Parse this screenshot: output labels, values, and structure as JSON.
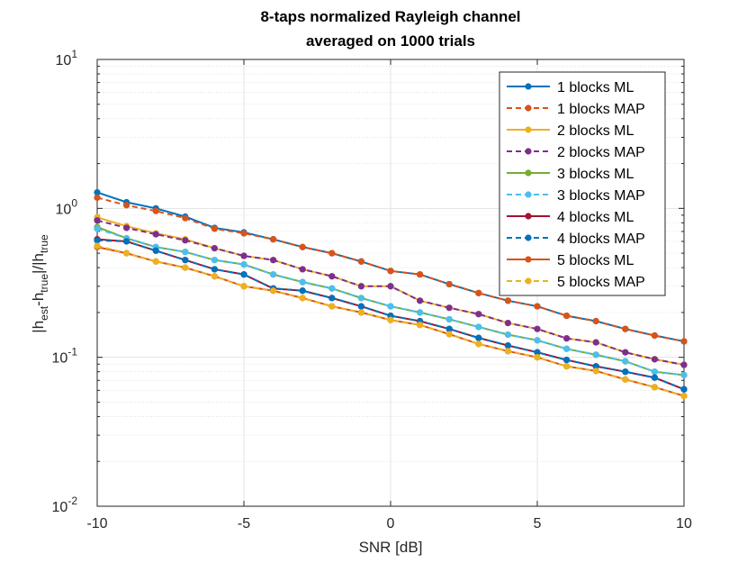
{
  "chart_data": {
    "type": "line",
    "title": [
      "8-taps normalized Rayleigh channel",
      "averaged on 1000 trials"
    ],
    "xlabel": "SNR [dB]",
    "ylabel": {
      "base": "|h",
      "sub1": "est",
      "mid": "-h",
      "sub2": "true",
      "mid2": "|/|h",
      "sub3": "true"
    },
    "xlim": [
      -10,
      10
    ],
    "ylim": [
      0.01,
      10
    ],
    "yscale": "log",
    "grid": true,
    "minor_grid": true,
    "legend_position": "top-right",
    "xticks": [
      -10,
      -5,
      0,
      5,
      10
    ],
    "xtick_labels": [
      "-10",
      "-5",
      "0",
      "5",
      "10"
    ],
    "yticks": [
      {
        "value": 0.01,
        "base": "10",
        "exp": "-2"
      },
      {
        "value": 0.1,
        "base": "10",
        "exp": "-1"
      },
      {
        "value": 1,
        "base": "10",
        "exp": "0"
      },
      {
        "value": 10,
        "base": "10",
        "exp": "1"
      }
    ],
    "x": [
      -10,
      -9,
      -8,
      -7,
      -6,
      -5,
      -4,
      -3,
      -2,
      -1,
      0,
      1,
      2,
      3,
      4,
      5,
      6,
      7,
      8,
      9,
      10
    ],
    "series": [
      {
        "name": "1 blocks ML",
        "color": "#0072BD",
        "dashed": false,
        "values": [
          1.28,
          1.1,
          1.0,
          0.88,
          0.74,
          0.69,
          0.62,
          0.55,
          0.5,
          0.44,
          0.38,
          0.36,
          0.31,
          0.27,
          0.24,
          0.22,
          0.19,
          0.175,
          0.155,
          0.14,
          0.128
        ]
      },
      {
        "name": "1 blocks MAP",
        "color": "#D95319",
        "dashed": true,
        "values": [
          1.18,
          1.05,
          0.96,
          0.86,
          0.73,
          0.68,
          0.62,
          0.55,
          0.5,
          0.44,
          0.38,
          0.36,
          0.31,
          0.27,
          0.24,
          0.22,
          0.19,
          0.175,
          0.155,
          0.14,
          0.128
        ]
      },
      {
        "name": "2 blocks ML",
        "color": "#EDB120",
        "dashed": false,
        "values": [
          0.87,
          0.76,
          0.68,
          0.62,
          0.54,
          0.48,
          0.45,
          0.39,
          0.35,
          0.3,
          0.3,
          0.24,
          0.215,
          0.195,
          0.17,
          0.155,
          0.134,
          0.126,
          0.108,
          0.097,
          0.089
        ]
      },
      {
        "name": "2 blocks MAP",
        "color": "#7E2F8E",
        "dashed": true,
        "values": [
          0.83,
          0.74,
          0.67,
          0.61,
          0.54,
          0.48,
          0.45,
          0.39,
          0.35,
          0.3,
          0.3,
          0.24,
          0.215,
          0.195,
          0.17,
          0.155,
          0.134,
          0.126,
          0.108,
          0.097,
          0.089
        ]
      },
      {
        "name": "3 blocks ML",
        "color": "#77AC30",
        "dashed": false,
        "values": [
          0.75,
          0.63,
          0.55,
          0.51,
          0.45,
          0.42,
          0.36,
          0.32,
          0.29,
          0.25,
          0.22,
          0.2,
          0.18,
          0.16,
          0.142,
          0.13,
          0.114,
          0.104,
          0.094,
          0.08,
          0.076
        ]
      },
      {
        "name": "3 blocks MAP",
        "color": "#4DBEEE",
        "dashed": true,
        "values": [
          0.73,
          0.63,
          0.55,
          0.51,
          0.45,
          0.42,
          0.36,
          0.32,
          0.29,
          0.25,
          0.22,
          0.2,
          0.18,
          0.16,
          0.142,
          0.13,
          0.114,
          0.104,
          0.094,
          0.08,
          0.076
        ]
      },
      {
        "name": "4 blocks ML",
        "color": "#A2142F",
        "dashed": false,
        "values": [
          0.62,
          0.6,
          0.52,
          0.45,
          0.39,
          0.36,
          0.29,
          0.28,
          0.25,
          0.22,
          0.19,
          0.175,
          0.155,
          0.135,
          0.12,
          0.108,
          0.096,
          0.087,
          0.08,
          0.073,
          0.061
        ]
      },
      {
        "name": "4 blocks MAP",
        "color": "#0072BD",
        "dashed": true,
        "values": [
          0.61,
          0.6,
          0.52,
          0.45,
          0.39,
          0.36,
          0.29,
          0.28,
          0.25,
          0.22,
          0.19,
          0.175,
          0.155,
          0.135,
          0.12,
          0.108,
          0.096,
          0.087,
          0.08,
          0.073,
          0.061
        ]
      },
      {
        "name": "5 blocks ML",
        "color": "#D95319",
        "dashed": false,
        "values": [
          0.55,
          0.5,
          0.44,
          0.4,
          0.35,
          0.3,
          0.28,
          0.25,
          0.22,
          0.2,
          0.178,
          0.165,
          0.143,
          0.123,
          0.11,
          0.1,
          0.087,
          0.081,
          0.071,
          0.063,
          0.055
        ]
      },
      {
        "name": "5 blocks MAP",
        "color": "#EDB120",
        "dashed": true,
        "values": [
          0.56,
          0.5,
          0.44,
          0.4,
          0.35,
          0.3,
          0.28,
          0.25,
          0.22,
          0.2,
          0.178,
          0.165,
          0.143,
          0.123,
          0.11,
          0.1,
          0.087,
          0.081,
          0.071,
          0.063,
          0.055
        ]
      }
    ]
  }
}
